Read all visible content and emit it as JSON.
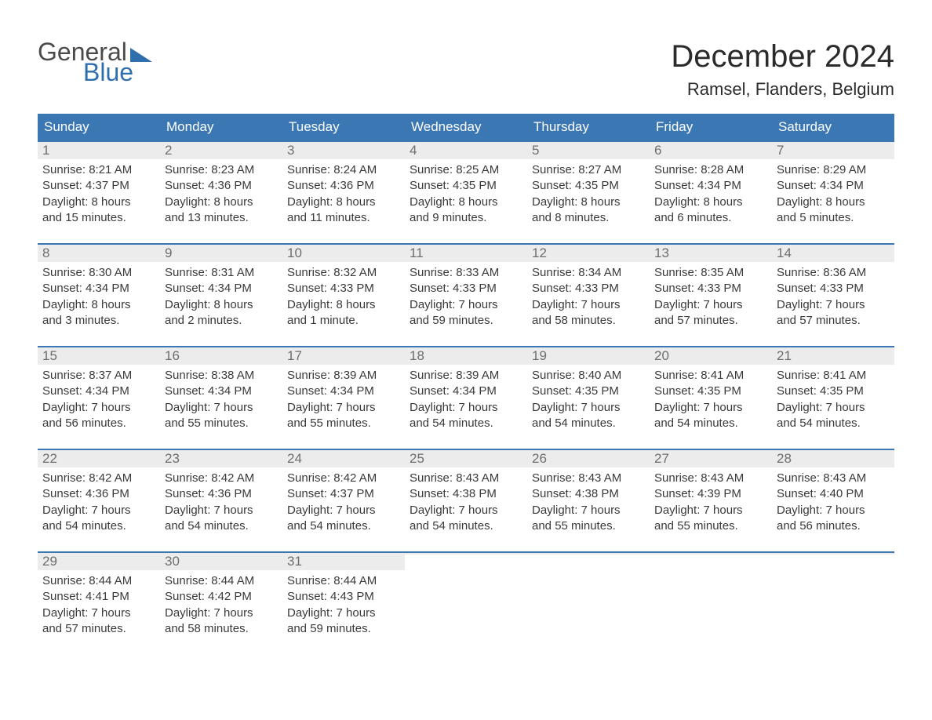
{
  "brand": {
    "word1": "General",
    "word2": "Blue",
    "accent_color": "#2f6fad"
  },
  "title": "December 2024",
  "location": "Ramsel, Flanders, Belgium",
  "colors": {
    "header_bg": "#3a77b3",
    "header_text": "#ffffff",
    "daynum_bg": "#ececec",
    "daynum_text": "#6e6e6e",
    "body_text": "#3a3a3a",
    "week_border": "#3a77b3",
    "page_bg": "#ffffff"
  },
  "typography": {
    "title_fontsize": 40,
    "location_fontsize": 22,
    "weekday_fontsize": 17,
    "daynum_fontsize": 17,
    "body_fontsize": 15
  },
  "weekdays": [
    "Sunday",
    "Monday",
    "Tuesday",
    "Wednesday",
    "Thursday",
    "Friday",
    "Saturday"
  ],
  "weeks": [
    [
      {
        "n": "1",
        "sunrise": "Sunrise: 8:21 AM",
        "sunset": "Sunset: 4:37 PM",
        "d1": "Daylight: 8 hours",
        "d2": "and 15 minutes."
      },
      {
        "n": "2",
        "sunrise": "Sunrise: 8:23 AM",
        "sunset": "Sunset: 4:36 PM",
        "d1": "Daylight: 8 hours",
        "d2": "and 13 minutes."
      },
      {
        "n": "3",
        "sunrise": "Sunrise: 8:24 AM",
        "sunset": "Sunset: 4:36 PM",
        "d1": "Daylight: 8 hours",
        "d2": "and 11 minutes."
      },
      {
        "n": "4",
        "sunrise": "Sunrise: 8:25 AM",
        "sunset": "Sunset: 4:35 PM",
        "d1": "Daylight: 8 hours",
        "d2": "and 9 minutes."
      },
      {
        "n": "5",
        "sunrise": "Sunrise: 8:27 AM",
        "sunset": "Sunset: 4:35 PM",
        "d1": "Daylight: 8 hours",
        "d2": "and 8 minutes."
      },
      {
        "n": "6",
        "sunrise": "Sunrise: 8:28 AM",
        "sunset": "Sunset: 4:34 PM",
        "d1": "Daylight: 8 hours",
        "d2": "and 6 minutes."
      },
      {
        "n": "7",
        "sunrise": "Sunrise: 8:29 AM",
        "sunset": "Sunset: 4:34 PM",
        "d1": "Daylight: 8 hours",
        "d2": "and 5 minutes."
      }
    ],
    [
      {
        "n": "8",
        "sunrise": "Sunrise: 8:30 AM",
        "sunset": "Sunset: 4:34 PM",
        "d1": "Daylight: 8 hours",
        "d2": "and 3 minutes."
      },
      {
        "n": "9",
        "sunrise": "Sunrise: 8:31 AM",
        "sunset": "Sunset: 4:34 PM",
        "d1": "Daylight: 8 hours",
        "d2": "and 2 minutes."
      },
      {
        "n": "10",
        "sunrise": "Sunrise: 8:32 AM",
        "sunset": "Sunset: 4:33 PM",
        "d1": "Daylight: 8 hours",
        "d2": "and 1 minute."
      },
      {
        "n": "11",
        "sunrise": "Sunrise: 8:33 AM",
        "sunset": "Sunset: 4:33 PM",
        "d1": "Daylight: 7 hours",
        "d2": "and 59 minutes."
      },
      {
        "n": "12",
        "sunrise": "Sunrise: 8:34 AM",
        "sunset": "Sunset: 4:33 PM",
        "d1": "Daylight: 7 hours",
        "d2": "and 58 minutes."
      },
      {
        "n": "13",
        "sunrise": "Sunrise: 8:35 AM",
        "sunset": "Sunset: 4:33 PM",
        "d1": "Daylight: 7 hours",
        "d2": "and 57 minutes."
      },
      {
        "n": "14",
        "sunrise": "Sunrise: 8:36 AM",
        "sunset": "Sunset: 4:33 PM",
        "d1": "Daylight: 7 hours",
        "d2": "and 57 minutes."
      }
    ],
    [
      {
        "n": "15",
        "sunrise": "Sunrise: 8:37 AM",
        "sunset": "Sunset: 4:34 PM",
        "d1": "Daylight: 7 hours",
        "d2": "and 56 minutes."
      },
      {
        "n": "16",
        "sunrise": "Sunrise: 8:38 AM",
        "sunset": "Sunset: 4:34 PM",
        "d1": "Daylight: 7 hours",
        "d2": "and 55 minutes."
      },
      {
        "n": "17",
        "sunrise": "Sunrise: 8:39 AM",
        "sunset": "Sunset: 4:34 PM",
        "d1": "Daylight: 7 hours",
        "d2": "and 55 minutes."
      },
      {
        "n": "18",
        "sunrise": "Sunrise: 8:39 AM",
        "sunset": "Sunset: 4:34 PM",
        "d1": "Daylight: 7 hours",
        "d2": "and 54 minutes."
      },
      {
        "n": "19",
        "sunrise": "Sunrise: 8:40 AM",
        "sunset": "Sunset: 4:35 PM",
        "d1": "Daylight: 7 hours",
        "d2": "and 54 minutes."
      },
      {
        "n": "20",
        "sunrise": "Sunrise: 8:41 AM",
        "sunset": "Sunset: 4:35 PM",
        "d1": "Daylight: 7 hours",
        "d2": "and 54 minutes."
      },
      {
        "n": "21",
        "sunrise": "Sunrise: 8:41 AM",
        "sunset": "Sunset: 4:35 PM",
        "d1": "Daylight: 7 hours",
        "d2": "and 54 minutes."
      }
    ],
    [
      {
        "n": "22",
        "sunrise": "Sunrise: 8:42 AM",
        "sunset": "Sunset: 4:36 PM",
        "d1": "Daylight: 7 hours",
        "d2": "and 54 minutes."
      },
      {
        "n": "23",
        "sunrise": "Sunrise: 8:42 AM",
        "sunset": "Sunset: 4:36 PM",
        "d1": "Daylight: 7 hours",
        "d2": "and 54 minutes."
      },
      {
        "n": "24",
        "sunrise": "Sunrise: 8:42 AM",
        "sunset": "Sunset: 4:37 PM",
        "d1": "Daylight: 7 hours",
        "d2": "and 54 minutes."
      },
      {
        "n": "25",
        "sunrise": "Sunrise: 8:43 AM",
        "sunset": "Sunset: 4:38 PM",
        "d1": "Daylight: 7 hours",
        "d2": "and 54 minutes."
      },
      {
        "n": "26",
        "sunrise": "Sunrise: 8:43 AM",
        "sunset": "Sunset: 4:38 PM",
        "d1": "Daylight: 7 hours",
        "d2": "and 55 minutes."
      },
      {
        "n": "27",
        "sunrise": "Sunrise: 8:43 AM",
        "sunset": "Sunset: 4:39 PM",
        "d1": "Daylight: 7 hours",
        "d2": "and 55 minutes."
      },
      {
        "n": "28",
        "sunrise": "Sunrise: 8:43 AM",
        "sunset": "Sunset: 4:40 PM",
        "d1": "Daylight: 7 hours",
        "d2": "and 56 minutes."
      }
    ],
    [
      {
        "n": "29",
        "sunrise": "Sunrise: 8:44 AM",
        "sunset": "Sunset: 4:41 PM",
        "d1": "Daylight: 7 hours",
        "d2": "and 57 minutes."
      },
      {
        "n": "30",
        "sunrise": "Sunrise: 8:44 AM",
        "sunset": "Sunset: 4:42 PM",
        "d1": "Daylight: 7 hours",
        "d2": "and 58 minutes."
      },
      {
        "n": "31",
        "sunrise": "Sunrise: 8:44 AM",
        "sunset": "Sunset: 4:43 PM",
        "d1": "Daylight: 7 hours",
        "d2": "and 59 minutes."
      },
      {
        "n": "",
        "empty": true
      },
      {
        "n": "",
        "empty": true
      },
      {
        "n": "",
        "empty": true
      },
      {
        "n": "",
        "empty": true
      }
    ]
  ]
}
